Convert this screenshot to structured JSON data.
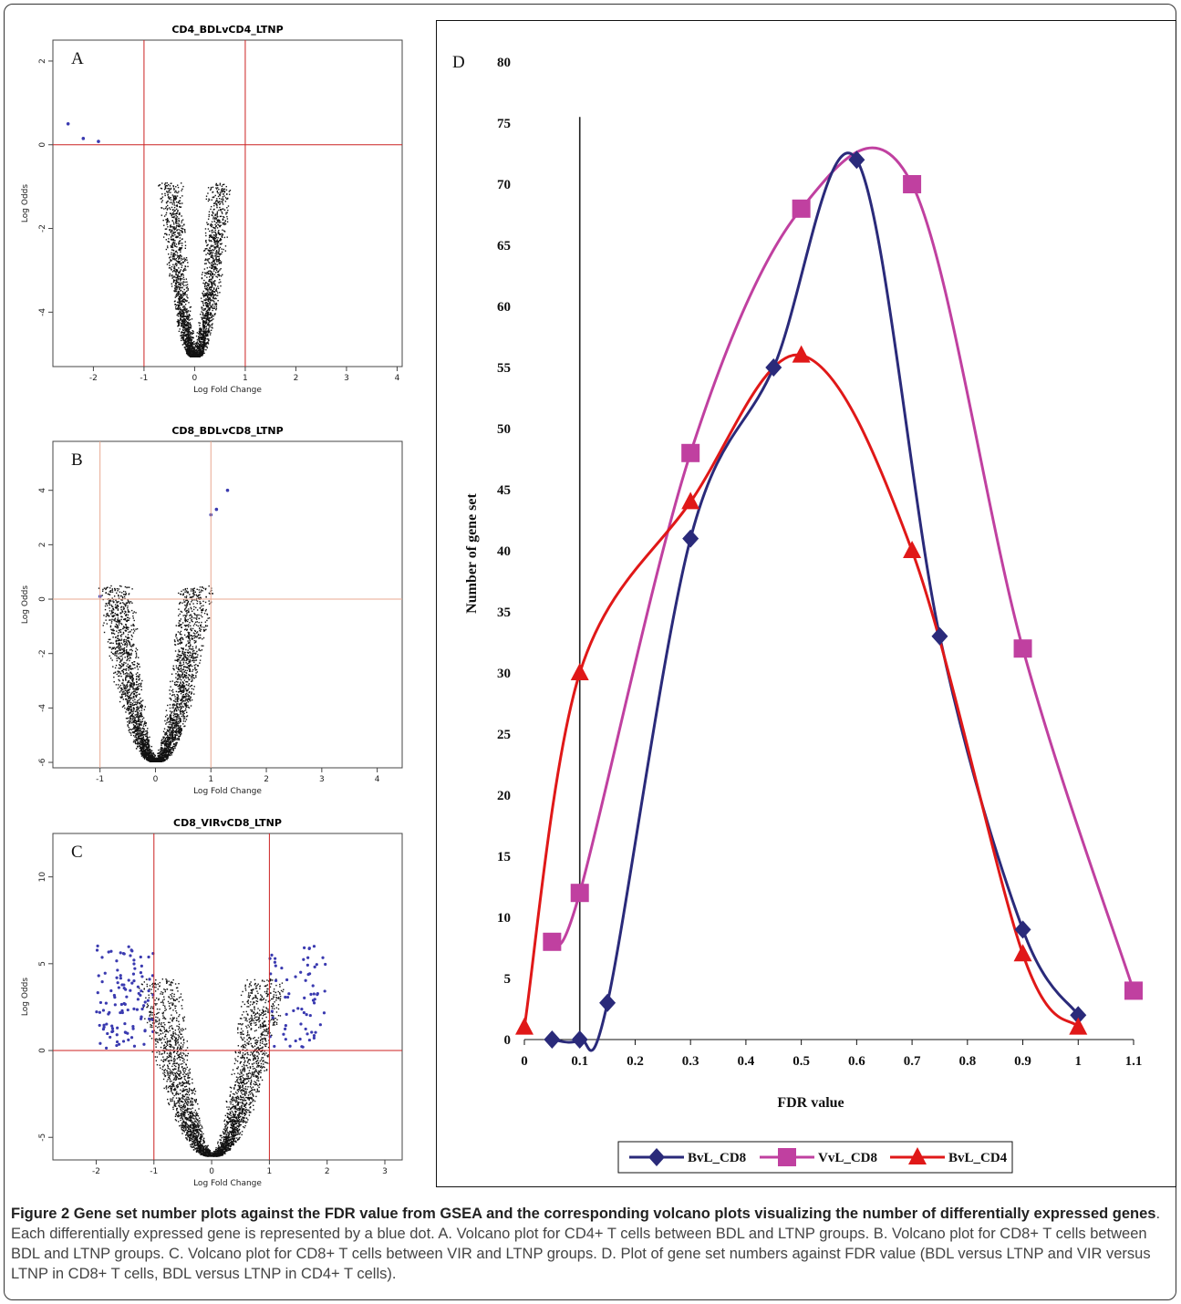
{
  "volcano_plots": [
    {
      "panel": "A",
      "title": "CD4_BDLvCD4_LTNP",
      "xlabel": "Log Fold Change",
      "ylabel": "Log Odds",
      "xlim": [
        -2.8,
        4.1
      ],
      "ylim": [
        -5.3,
        2.5
      ],
      "xticks": [
        -2,
        -1,
        0,
        1,
        2,
        3,
        4
      ],
      "yticks": [
        2,
        0,
        -2,
        -4
      ],
      "fc_threshold": 1,
      "odds_threshold": 0,
      "line_color": "#cc2222",
      "spread": 0.28,
      "n_points": 2600,
      "highlighted": [
        [
          -2.5,
          0.5
        ],
        [
          -2.2,
          0.15
        ],
        [
          -1.9,
          0.08
        ]
      ]
    },
    {
      "panel": "B",
      "title": "CD8_BDLvCD8_LTNP",
      "xlabel": "Log Fold Change",
      "ylabel": "Log Odds",
      "xlim": [
        -1.85,
        4.45
      ],
      "ylim": [
        -6.2,
        5.8
      ],
      "xticks": [
        -1,
        0,
        1,
        2,
        3,
        4
      ],
      "yticks": [
        4,
        2,
        0,
        -2,
        -4,
        -6
      ],
      "fc_threshold": 1,
      "odds_threshold": 0,
      "line_color": "#e8a890",
      "spread": 0.34,
      "n_points": 3200,
      "highlighted": [
        [
          1.0,
          3.1
        ],
        [
          1.1,
          3.3
        ],
        [
          1.3,
          4.0
        ],
        [
          -1.0,
          0.1
        ]
      ]
    },
    {
      "panel": "C",
      "title": "CD8_VIRvCD8_LTNP",
      "xlabel": "Log Fold Change",
      "ylabel": "Log Odds",
      "xlim": [
        -2.75,
        3.3
      ],
      "ylim": [
        -6.3,
        12.5
      ],
      "xticks": [
        -2,
        -1,
        0,
        1,
        2,
        3
      ],
      "yticks": [
        10,
        5,
        0,
        -5
      ],
      "fc_threshold": 1,
      "odds_threshold": 0,
      "line_color": "#cc2222",
      "spread": 0.34,
      "n_points": 3200,
      "highlighted": []
    }
  ],
  "chart_data": {
    "type": "line",
    "panel": "D",
    "xlabel": "FDR value",
    "ylabel": "Number of gene set",
    "xlim": [
      0,
      1.1
    ],
    "ylim": [
      0,
      80
    ],
    "xticks": [
      "0",
      "0.1",
      "0.2",
      "0.3",
      "0.4",
      "0.5",
      "0.6",
      "0.7",
      "0.8",
      "0.9",
      "1",
      "1.1"
    ],
    "yticks": [
      "0",
      "5",
      "10",
      "15",
      "20",
      "25",
      "30",
      "35",
      "40",
      "45",
      "50",
      "55",
      "60",
      "65",
      "70",
      "75",
      "80"
    ],
    "reference_line_x": 0.1,
    "legend_position": "bottom",
    "series": [
      {
        "name": "BvL_CD8",
        "color": "#2a2a7a",
        "marker": "diamond",
        "x": [
          0.05,
          0.1,
          0.15,
          0.3,
          0.45,
          0.6,
          0.75,
          0.9,
          1.0
        ],
        "y": [
          0,
          0,
          3,
          41,
          55,
          72,
          33,
          9,
          2
        ]
      },
      {
        "name": "VvL_CD8",
        "color": "#c040a0",
        "marker": "square",
        "x": [
          0.05,
          0.1,
          0.3,
          0.5,
          0.7,
          0.9,
          1.1
        ],
        "y": [
          8,
          12,
          48,
          68,
          70,
          32,
          4
        ]
      },
      {
        "name": "BvL_CD4",
        "color": "#e01818",
        "marker": "triangle",
        "x": [
          0,
          0.1,
          0.3,
          0.5,
          0.7,
          0.9,
          1.0
        ],
        "y": [
          1,
          30,
          44,
          56,
          40,
          7,
          1
        ]
      }
    ]
  },
  "caption": {
    "bold": "Figure 2 Gene set number plots against the FDR value from GSEA and the corresponding volcano plots visualizing the number of differentially expressed genes",
    "text": ". Each differentially expressed gene is represented by a blue dot. A. Volcano plot for CD4+ T cells between BDL and LTNP groups. B. Volcano plot for CD8+ T cells between BDL and LTNP groups. C. Volcano plot for CD8+ T cells between VIR and LTNP groups. D. Plot of gene set numbers against FDR value (BDL versus LTNP and VIR versus LTNP in CD8+ T cells, BDL versus LTNP in CD4+ T cells)."
  }
}
